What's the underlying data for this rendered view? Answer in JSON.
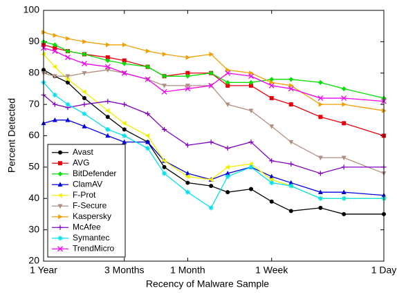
{
  "chart_data": {
    "type": "line",
    "xlabel": "Recency of Malware Sample",
    "ylabel": "Percent Detected",
    "x": [
      365,
      300,
      240,
      180,
      120,
      90,
      60,
      45,
      30,
      20,
      15,
      10,
      7,
      5,
      3,
      2,
      1
    ],
    "xlim": [
      365,
      1
    ],
    "xscale": "log",
    "xticks": [
      {
        "value": 365,
        "label": "1 Year"
      },
      {
        "value": 90,
        "label": "3 Months"
      },
      {
        "value": 30,
        "label": "1 Month"
      },
      {
        "value": 7,
        "label": "1 Week"
      },
      {
        "value": 1,
        "label": "1 Day"
      }
    ],
    "ylim": [
      20,
      100
    ],
    "yticks": [
      20,
      30,
      40,
      50,
      60,
      70,
      80,
      90,
      100
    ],
    "legend": "lower-left",
    "series": [
      {
        "name": "Avast",
        "color": "#000000",
        "marker": "circle",
        "values": [
          81,
          79,
          77,
          72,
          66,
          62,
          58,
          50,
          45,
          44,
          42,
          43,
          39,
          36,
          37,
          35,
          35
        ]
      },
      {
        "name": "AVG",
        "color": "#e8000b",
        "marker": "square",
        "values": [
          89,
          88,
          87,
          86,
          85,
          84,
          82,
          79,
          80,
          80,
          76,
          76,
          72,
          70,
          66,
          64,
          60
        ]
      },
      {
        "name": "BitDefender",
        "color": "#00e000",
        "marker": "diamond",
        "values": [
          90,
          89,
          87,
          86,
          84,
          83,
          82,
          79,
          79,
          80,
          77,
          77,
          78,
          78,
          77,
          75,
          72
        ]
      },
      {
        "name": "ClamAV",
        "color": "#0000e0",
        "marker": "triangle-up",
        "values": [
          64,
          65,
          65,
          63,
          60,
          58,
          58,
          52,
          48,
          46,
          48,
          50,
          47,
          45,
          42,
          42,
          41
        ]
      },
      {
        "name": "F-Prot",
        "color": "#f0f000",
        "marker": "triangle-left",
        "values": [
          86,
          82,
          78,
          74,
          68,
          64,
          60,
          52,
          47,
          46,
          50,
          51,
          46,
          44,
          40,
          40,
          40
        ]
      },
      {
        "name": "F-Secure",
        "color": "#b09080",
        "marker": "triangle-down",
        "values": [
          80,
          79,
          79,
          80,
          81,
          80,
          78,
          76,
          76,
          76,
          70,
          68,
          63,
          58,
          53,
          53,
          48
        ]
      },
      {
        "name": "Kaspersky",
        "color": "#f0a000",
        "marker": "triangle-right",
        "values": [
          93,
          92,
          91,
          90,
          89,
          89,
          87,
          86,
          85,
          86,
          81,
          80,
          77,
          76,
          70,
          70,
          68
        ]
      },
      {
        "name": "McAfee",
        "color": "#8000c0",
        "marker": "plus",
        "values": [
          73,
          70,
          69,
          70,
          71,
          70,
          67,
          62,
          57,
          58,
          56,
          58,
          52,
          51,
          48,
          50,
          50
        ]
      },
      {
        "name": "Symantec",
        "color": "#00e0f0",
        "marker": "asterisk",
        "values": [
          77,
          73,
          70,
          67,
          62,
          60,
          56,
          48,
          42,
          37,
          47,
          50,
          45,
          44,
          40,
          40,
          40
        ]
      },
      {
        "name": "TrendMicro",
        "color": "#f000f0",
        "marker": "cross",
        "values": [
          88,
          87,
          85,
          83,
          82,
          80,
          78,
          74,
          75,
          76,
          80,
          79,
          76,
          75,
          72,
          72,
          71
        ]
      }
    ]
  }
}
